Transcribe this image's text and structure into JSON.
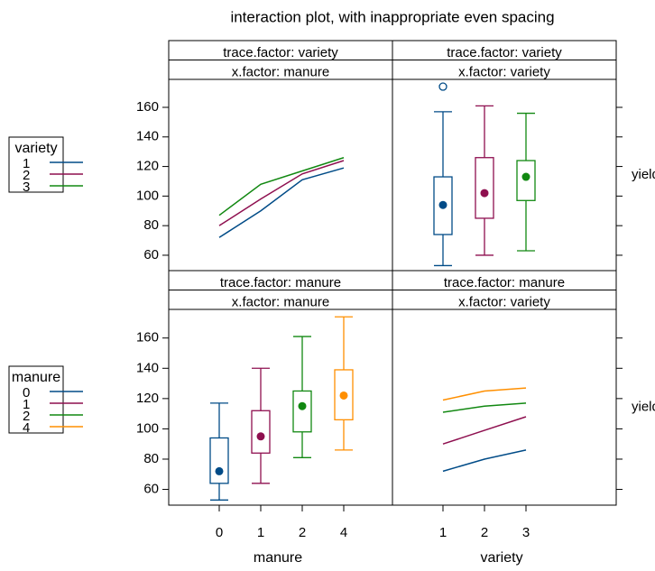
{
  "title": "interaction plot, with inappropriate even spacing",
  "chart_data": [
    {
      "type": "line",
      "strips": [
        "trace.factor: variety",
        "x.factor: manure"
      ],
      "categories": [
        null,
        null,
        null,
        null
      ],
      "legend_title": "variety",
      "ylim": [
        49.6,
        178.9
      ],
      "yticks": [
        60,
        80,
        100,
        120,
        140,
        160
      ],
      "series": [
        {
          "name": "1",
          "color": "#004b87",
          "values": [
            72,
            90,
            111,
            119
          ]
        },
        {
          "name": "2",
          "color": "#8e0f4f",
          "values": [
            80,
            98,
            115,
            124
          ]
        },
        {
          "name": "3",
          "color": "#118811",
          "values": [
            87,
            108,
            117,
            126
          ]
        }
      ]
    },
    {
      "type": "box",
      "strips": [
        "trace.factor: variety",
        "x.factor: variety"
      ],
      "categories": [
        null,
        null,
        null
      ],
      "ylabel": "yield",
      "ylim": [
        49.6,
        178.9
      ],
      "boxes": [
        {
          "color": "#004b87",
          "low": 53,
          "q1": 74,
          "median": 94,
          "q3": 113,
          "high": 157,
          "outliers": [
            174
          ]
        },
        {
          "color": "#8e0f4f",
          "low": 60,
          "q1": 85,
          "median": 102,
          "q3": 126,
          "high": 161,
          "outliers": []
        },
        {
          "color": "#118811",
          "low": 63,
          "q1": 97,
          "median": 113,
          "q3": 124,
          "high": 156,
          "outliers": []
        }
      ]
    },
    {
      "type": "box",
      "strips": [
        "trace.factor: manure",
        "x.factor: manure"
      ],
      "categories": [
        "0",
        "1",
        "2",
        "4"
      ],
      "xlabel": "manure",
      "ylim": [
        49.6,
        178.9
      ],
      "yticks": [
        60,
        80,
        100,
        120,
        140,
        160
      ],
      "boxes": [
        {
          "color": "#004b87",
          "low": 53,
          "q1": 64,
          "median": 72,
          "q3": 94,
          "high": 117,
          "outliers": []
        },
        {
          "color": "#8e0f4f",
          "low": 64,
          "q1": 84,
          "median": 95,
          "q3": 112,
          "high": 140,
          "outliers": []
        },
        {
          "color": "#118811",
          "low": 81,
          "q1": 98,
          "median": 115,
          "q3": 125,
          "high": 161,
          "outliers": []
        },
        {
          "color": "#ff8f00",
          "low": 86,
          "q1": 106,
          "median": 122,
          "q3": 139,
          "high": 174,
          "outliers": []
        }
      ]
    },
    {
      "type": "line",
      "strips": [
        "trace.factor: manure",
        "x.factor: variety"
      ],
      "categories": [
        "1",
        "2",
        "3"
      ],
      "xlabel": "variety",
      "ylabel": "yield",
      "legend_title": "manure",
      "ylim": [
        49.6,
        178.9
      ],
      "series": [
        {
          "name": "0",
          "color": "#004b87",
          "values": [
            72,
            80,
            86
          ]
        },
        {
          "name": "1",
          "color": "#8e0f4f",
          "values": [
            90,
            99,
            108
          ]
        },
        {
          "name": "2",
          "color": "#118811",
          "values": [
            111,
            115,
            117
          ]
        },
        {
          "name": "4",
          "color": "#ff8f00",
          "values": [
            119,
            125,
            127
          ]
        }
      ]
    }
  ]
}
